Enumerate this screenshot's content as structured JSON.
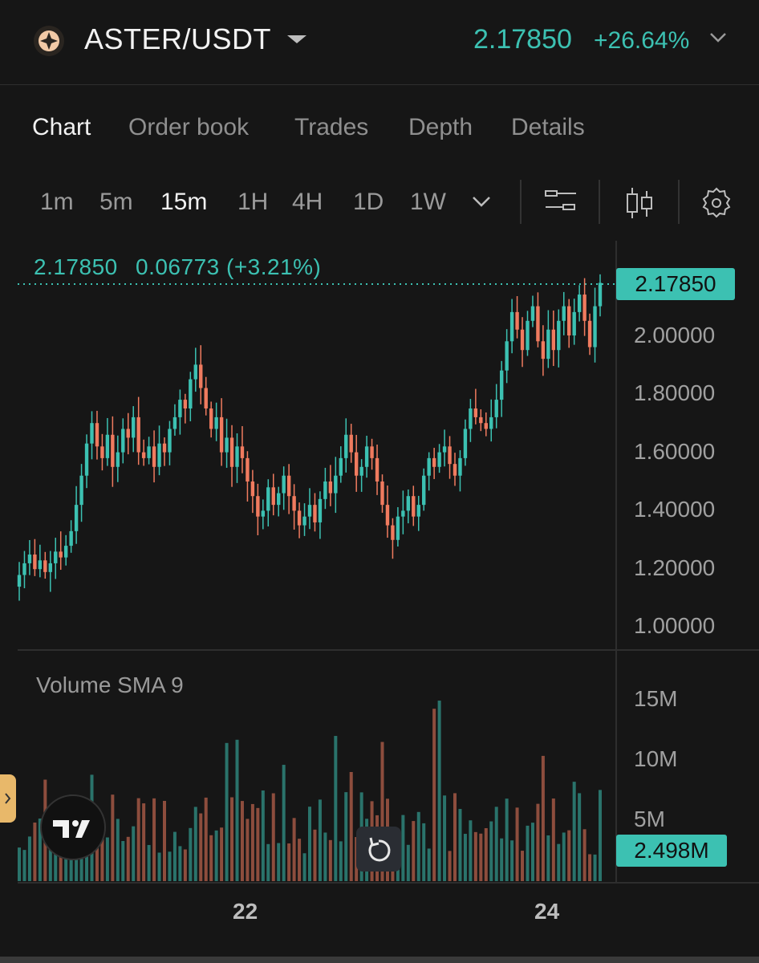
{
  "header": {
    "pair": "ASTER/USDT",
    "price": "2.17850",
    "change": "+26.64%"
  },
  "tabs": [
    "Chart",
    "Order book",
    "Trades",
    "Depth",
    "Details"
  ],
  "intervals": [
    "1m",
    "5m",
    "15m",
    "1H",
    "4H",
    "1D",
    "1W"
  ],
  "legend": {
    "price": "2.17850",
    "change": "0.06773 (+3.21%)"
  },
  "price_tag": "2.17850",
  "volume": {
    "label": "Volume SMA 9",
    "tag": "2.498M"
  },
  "icons": [
    "aster-logo-icon",
    "chevron-down-icon",
    "indicators-icon",
    "candle-type-icon",
    "settings-icon",
    "tradingview-logo-icon",
    "reset-icon"
  ],
  "colors": {
    "up": "#3cc1b2",
    "down": "#f07b5f",
    "bg": "#161616"
  },
  "chart_data": {
    "type": "candlestick",
    "interval": "15m",
    "y_ticks": [
      "2.00000",
      "1.80000",
      "1.60000",
      "1.40000",
      "1.20000",
      "1.00000"
    ],
    "ylim": [
      1.0,
      2.2
    ],
    "volume_ticks": [
      "15M",
      "10M",
      "5M"
    ],
    "volume_ylim": [
      0,
      16
    ],
    "x_ticks": [
      "22",
      "24"
    ],
    "last_price": 2.1785,
    "close_series": [
      1.18,
      1.22,
      1.25,
      1.2,
      1.23,
      1.19,
      1.22,
      1.26,
      1.24,
      1.28,
      1.33,
      1.42,
      1.52,
      1.63,
      1.7,
      1.62,
      1.58,
      1.66,
      1.55,
      1.6,
      1.68,
      1.65,
      1.72,
      1.6,
      1.58,
      1.62,
      1.55,
      1.63,
      1.6,
      1.68,
      1.72,
      1.78,
      1.75,
      1.85,
      1.9,
      1.82,
      1.75,
      1.68,
      1.72,
      1.6,
      1.65,
      1.55,
      1.62,
      1.58,
      1.5,
      1.45,
      1.38,
      1.4,
      1.48,
      1.42,
      1.46,
      1.52,
      1.45,
      1.4,
      1.35,
      1.38,
      1.42,
      1.36,
      1.44,
      1.5,
      1.46,
      1.52,
      1.58,
      1.66,
      1.6,
      1.52,
      1.55,
      1.62,
      1.58,
      1.5,
      1.42,
      1.35,
      1.3,
      1.38,
      1.4,
      1.45,
      1.38,
      1.42,
      1.52,
      1.58,
      1.55,
      1.6,
      1.62,
      1.56,
      1.52,
      1.58,
      1.68,
      1.75,
      1.72,
      1.7,
      1.68,
      1.72,
      1.78,
      1.88,
      1.98,
      2.08,
      2.02,
      1.95,
      2.05,
      2.1,
      1.98,
      1.92,
      2.02,
      1.95,
      2.05,
      2.1,
      2.0,
      2.08,
      2.14,
      2.05,
      1.96,
      2.1,
      2.18
    ]
  }
}
